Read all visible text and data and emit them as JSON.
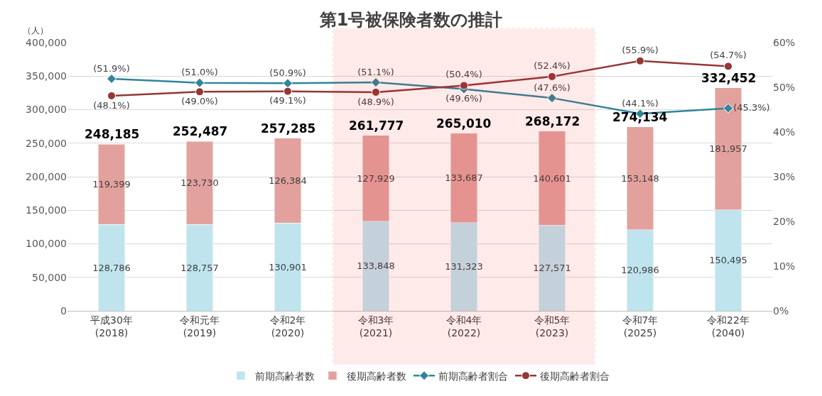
{
  "chart_data": {
    "type": "bar",
    "title": "第1号被保険者数の推計",
    "ylabel": "（人）",
    "categories": [
      "平成30年\n(2018)",
      "令和元年\n(2019)",
      "令和2年\n(2020)",
      "令和3年\n(2021)",
      "令和4年\n(2022)",
      "令和5年\n(2023)",
      "令和7年\n(2025)",
      "令和22年\n(2040)"
    ],
    "stacked": true,
    "series": [
      {
        "name": "前期高齢者数",
        "color": "#bfe4ee",
        "values": [
          128786,
          128757,
          130901,
          133848,
          131323,
          127571,
          120986,
          150495
        ],
        "value_labels": [
          "128,786",
          "128,757",
          "130,901",
          "133,848",
          "131,323",
          "127,571",
          "120,986",
          "150,495"
        ]
      },
      {
        "name": "後期高齢者数",
        "color": "#e3a19d",
        "values": [
          119399,
          123730,
          126384,
          127929,
          133687,
          140601,
          153148,
          181957
        ],
        "value_labels": [
          "119,399",
          "123,730",
          "126,384",
          "127,929",
          "133,687",
          "140,601",
          "153,148",
          "181,957"
        ]
      },
      {
        "name": "前期高齢者割合",
        "type": "line",
        "axis": "y2",
        "color": "#31859c",
        "marker": "diamond",
        "values": [
          51.9,
          51.0,
          50.9,
          51.1,
          49.6,
          47.6,
          44.1,
          45.3
        ],
        "value_labels": [
          "(51.9%)",
          "(51.0%)",
          "(50.9%)",
          "(51.1%)",
          "(49.6%)",
          "(47.6%)",
          "(44.1%)",
          "(45.3%)"
        ]
      },
      {
        "name": "後期高齢者割合",
        "type": "line",
        "axis": "y2",
        "color": "#953735",
        "marker": "circle",
        "values": [
          48.1,
          49.0,
          49.1,
          48.9,
          50.4,
          52.4,
          55.9,
          54.7
        ],
        "value_labels": [
          "(48.1%)",
          "(49.0%)",
          "(49.1%)",
          "(48.9%)",
          "(50.4%)",
          "(52.4%)",
          "(55.9%)",
          "(54.7%)"
        ]
      }
    ],
    "totals": [
      "248,185",
      "252,487",
      "257,285",
      "261,777",
      "265,010",
      "268,172",
      "274,134",
      "332,452"
    ],
    "ylim": [
      0,
      400000
    ],
    "yticks": [
      {
        "value": 0,
        "label": "0"
      },
      {
        "value": 50000,
        "label": "50,000"
      },
      {
        "value": 100000,
        "label": "100,000"
      },
      {
        "value": 150000,
        "label": "150,000"
      },
      {
        "value": 200000,
        "label": "200,000"
      },
      {
        "value": 250000,
        "label": "250,000"
      },
      {
        "value": 300000,
        "label": "300,000"
      },
      {
        "value": 350000,
        "label": "350,000"
      },
      {
        "value": 400000,
        "label": "400,000"
      }
    ],
    "y2lim": [
      0,
      60
    ],
    "y2ticks": [
      {
        "value": 0,
        "label": "0%"
      },
      {
        "value": 10,
        "label": "10%"
      },
      {
        "value": 20,
        "label": "20%"
      },
      {
        "value": 30,
        "label": "30%"
      },
      {
        "value": 40,
        "label": "40%"
      },
      {
        "value": 50,
        "label": "50%"
      },
      {
        "value": 60,
        "label": "60%"
      }
    ],
    "bands": [
      {
        "axis": "x",
        "from": "令和3年\n(2021)",
        "to": "令和5年\n(2023)",
        "color": "#ff0000"
      }
    ],
    "grid": "y",
    "legend": "bottom"
  }
}
